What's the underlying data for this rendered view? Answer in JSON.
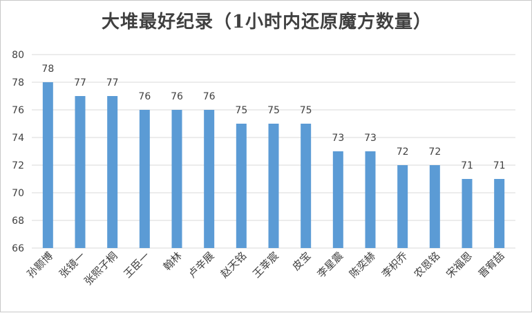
{
  "chart_data": {
    "type": "bar",
    "title": "大堆最好纪录（1小时内还原魔方数量）",
    "categories": [
      "孙颢博",
      "张镜一",
      "张熙子桐",
      "王臣一",
      "翰林",
      "卢辛展",
      "赵天铭",
      "王莘宸",
      "皮宝",
      "李星震",
      "陈奕赫",
      "李枳乔",
      "农恩铭",
      "宋福恩",
      "晋宥喆"
    ],
    "values": [
      78,
      77,
      77,
      76,
      76,
      76,
      75,
      75,
      75,
      73,
      73,
      72,
      72,
      71,
      71
    ],
    "yticks": [
      66,
      68,
      70,
      72,
      74,
      76,
      78,
      80
    ],
    "ylim": [
      66,
      80
    ],
    "grid": true,
    "bar_color": "#5b9bd5",
    "xlabel": "",
    "ylabel": ""
  }
}
